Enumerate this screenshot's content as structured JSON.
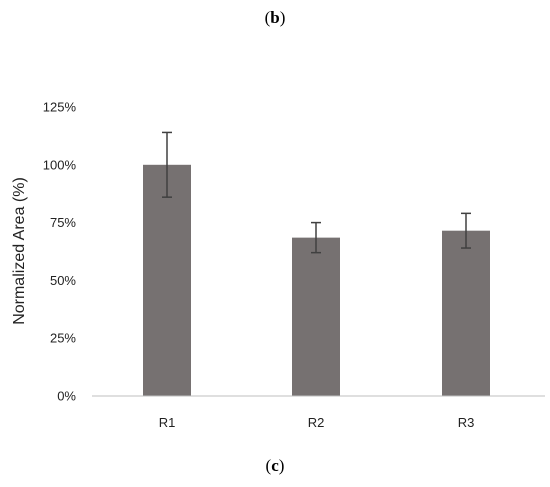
{
  "panel_labels": {
    "top": "b",
    "bottom": "c"
  },
  "colors": {
    "bar": "#767171",
    "error_bar": "#404040",
    "axis": "#bfbfbf",
    "text": "#222222"
  },
  "chart_data": {
    "type": "bar",
    "categories": [
      "R1",
      "R2",
      "R3"
    ],
    "values": [
      100,
      68.5,
      71.5
    ],
    "error": [
      14,
      6.5,
      7.5
    ],
    "ylabel": "Normalized Area (%)",
    "xlabel": "",
    "ylim": [
      0,
      125
    ],
    "yticks": [
      0,
      25,
      50,
      75,
      100,
      125
    ],
    "ytick_labels": [
      "0%",
      "25%",
      "50%",
      "75%",
      "100%",
      "125%"
    ],
    "grid": false,
    "legend": "none"
  }
}
